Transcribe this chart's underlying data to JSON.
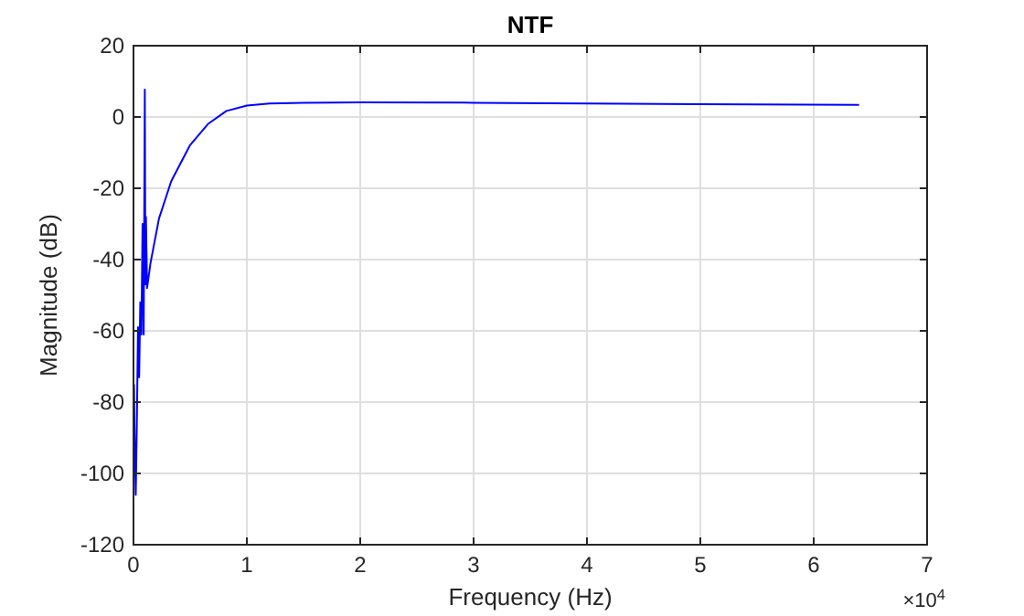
{
  "chart_data": {
    "type": "line",
    "title": "NTF",
    "xlabel": "Frequency (Hz)",
    "ylabel": "Magnitude (dB)",
    "annotations": [
      "×10$^{4}$"
    ],
    "xlim": [
      0,
      7
    ],
    "ylim": [
      -120,
      20
    ],
    "xticks": [
      0,
      1,
      2,
      3,
      4,
      5,
      6,
      7
    ],
    "yticks": [
      -120,
      -100,
      -80,
      -60,
      -40,
      -20,
      0,
      20
    ],
    "grid": true,
    "line_style": "solid",
    "marker": "none",
    "series": [
      {
        "color": "#0000ff",
        "x": [
          0.005,
          0.01,
          0.02,
          0.03,
          0.04,
          0.05,
          0.06,
          0.07,
          0.08,
          0.09,
          0.1,
          0.105,
          0.11,
          0.12,
          0.15,
          0.225,
          0.333,
          0.497,
          0.656,
          0.82,
          1,
          1.2,
          1.5,
          2,
          3,
          4,
          5,
          6.4
        ],
        "values": [
          -75,
          -90,
          -106,
          -85,
          -59,
          -73,
          -52,
          -61,
          -30,
          -61,
          7.7,
          -47,
          -28,
          -48,
          -41,
          -28.5,
          -18,
          -8,
          -2,
          1.7,
          3.2,
          3.8,
          4,
          4.1,
          4,
          3.8,
          3.6,
          3.4
        ]
      }
    ]
  }
}
